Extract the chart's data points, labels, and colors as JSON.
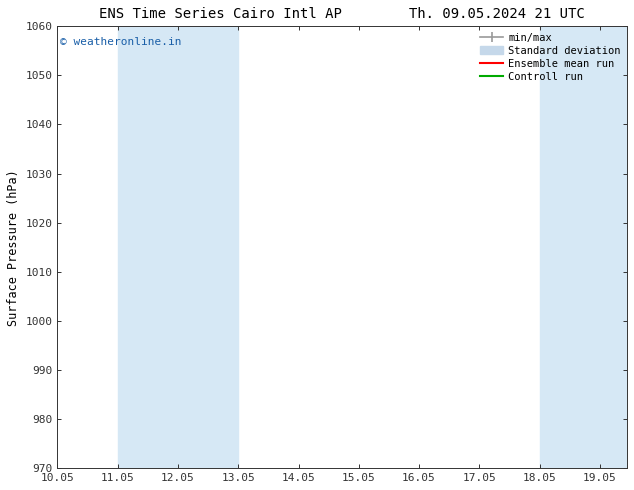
{
  "title_left": "ENS Time Series Cairo Intl AP",
  "title_right": "Th. 09.05.2024 21 UTC",
  "ylabel": "Surface Pressure (hPa)",
  "xlabel": "",
  "xlim": [
    10.05,
    19.5
  ],
  "ylim": [
    970,
    1060
  ],
  "yticks": [
    970,
    980,
    990,
    1000,
    1010,
    1020,
    1030,
    1040,
    1050,
    1060
  ],
  "xticks": [
    10.05,
    11.05,
    12.05,
    13.05,
    14.05,
    15.05,
    16.05,
    17.05,
    18.05,
    19.05
  ],
  "xtick_labels": [
    "10.05",
    "11.05",
    "12.05",
    "13.05",
    "14.05",
    "15.05",
    "16.05",
    "17.05",
    "18.05",
    "19.05"
  ],
  "shaded_bands": [
    {
      "xmin": 11.05,
      "xmax": 12.05
    },
    {
      "xmin": 12.05,
      "xmax": 13.05
    },
    {
      "xmin": 18.05,
      "xmax": 19.05
    },
    {
      "xmin": 19.05,
      "xmax": 19.5
    }
  ],
  "shaded_color": "#d6e8f5",
  "watermark": "© weatheronline.in",
  "watermark_color": "#1a5fa8",
  "bg_color": "#ffffff",
  "legend_minmax_color": "#999999",
  "legend_std_color": "#c5d8ea",
  "legend_mean_color": "#ff0000",
  "legend_control_color": "#00aa00",
  "spine_color": "#333333",
  "tick_color": "#333333",
  "title_fontsize": 10,
  "label_fontsize": 8.5,
  "tick_fontsize": 8,
  "font_family": "DejaVu Sans Mono"
}
